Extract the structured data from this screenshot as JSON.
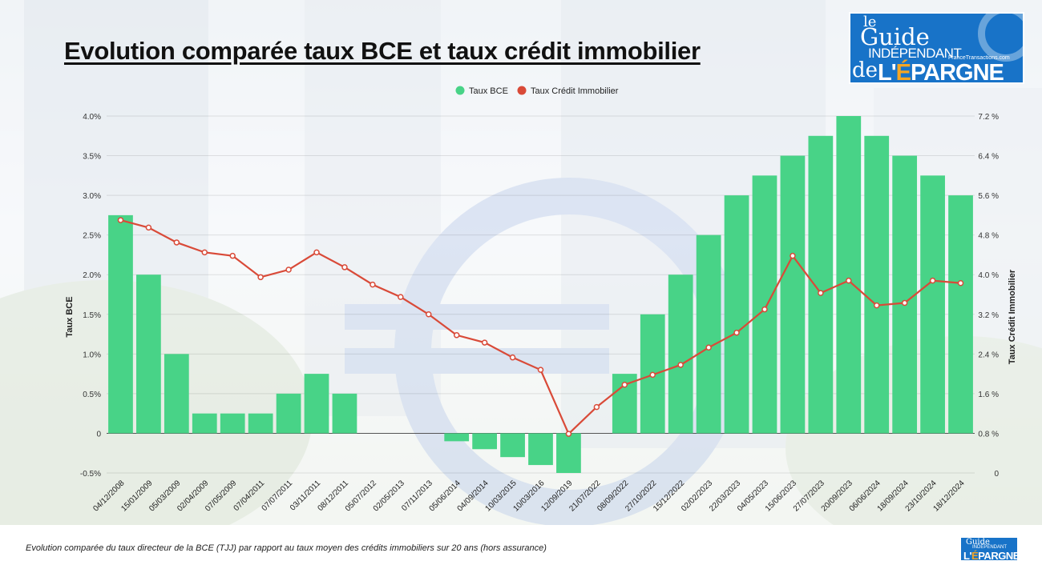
{
  "title": "Evolution comparée taux BCE et taux crédit immobilier",
  "caption": "Evolution comparée du taux directeur de la BCE (TJJ) par rapport au taux moyen des crédits immobiliers sur 20 ans (hors assurance)",
  "logo": {
    "line1": "le",
    "line2": "Guide",
    "line3": "INDÉPENDANT",
    "line4": "FranceTransactions.com",
    "line5": "de",
    "line6a": "L'",
    "line6b": "É",
    "line6c": "PARGNE"
  },
  "colors": {
    "bar": "#48d387",
    "line": "#d94a38",
    "marker_fill": "#ffffff",
    "logo": "#1873c8"
  },
  "chart_data": {
    "type": "bar",
    "legend_position": "top-center",
    "grid": true,
    "categories": [
      "04/12/2008",
      "15/01/2009",
      "05/03/2009",
      "02/04/2009",
      "07/05/2009",
      "07/04/2011",
      "07/07/2011",
      "03/11/2011",
      "08/12/2011",
      "05/07/2012",
      "02/05/2013",
      "07/11/2013",
      "05/06/2014",
      "04/09/2014",
      "10/03/2015",
      "10/03/2016",
      "12/09/2019",
      "21/07/2022",
      "08/09/2022",
      "27/10/2022",
      "15/12/2022",
      "02/02/2023",
      "22/03/2023",
      "04/05/2023",
      "15/06/2023",
      "27/07/2023",
      "20/09/2023",
      "06/06/2024",
      "18/09/2024",
      "23/10/2024",
      "18/12/2024"
    ],
    "y_left": {
      "label": "Taux BCE",
      "ticks": [
        "-0.5%",
        "0",
        "0.5%",
        "1.0%",
        "1.5%",
        "2.0%",
        "2.5%",
        "3.0%",
        "3.5%",
        "4.0%"
      ],
      "range": [
        -0.5,
        4.0
      ]
    },
    "y_right": {
      "label": "Taux Crédit Immobilier",
      "ticks": [
        "0",
        "0.8 %",
        "1.6 %",
        "2.4 %",
        "3.2 %",
        "4.0 %",
        "4.8 %",
        "5.6 %",
        "6.4 %",
        "7.2 %"
      ],
      "range": [
        0,
        7.2
      ]
    },
    "series": [
      {
        "name": "Taux BCE",
        "type": "bar",
        "axis": "left",
        "values": [
          2.75,
          2.0,
          1.0,
          0.25,
          0.25,
          0.25,
          0.5,
          0.75,
          0.5,
          0,
          0,
          0,
          -0.1,
          -0.2,
          -0.3,
          -0.4,
          -0.5,
          0,
          0.75,
          1.5,
          2.0,
          2.5,
          3.0,
          3.25,
          3.5,
          3.75,
          4.0,
          3.75,
          3.5,
          3.25,
          3.0
        ]
      },
      {
        "name": "Taux Crédit Immobilier",
        "type": "line",
        "axis": "right",
        "values": [
          5.1,
          4.95,
          4.65,
          4.45,
          4.38,
          3.95,
          4.1,
          4.45,
          4.15,
          3.8,
          3.55,
          3.2,
          2.78,
          2.63,
          2.33,
          2.08,
          0.79,
          1.33,
          1.78,
          1.98,
          2.18,
          2.53,
          2.83,
          3.3,
          4.38,
          3.63,
          3.88,
          3.38,
          3.43,
          3.88,
          3.83
        ]
      }
    ]
  }
}
